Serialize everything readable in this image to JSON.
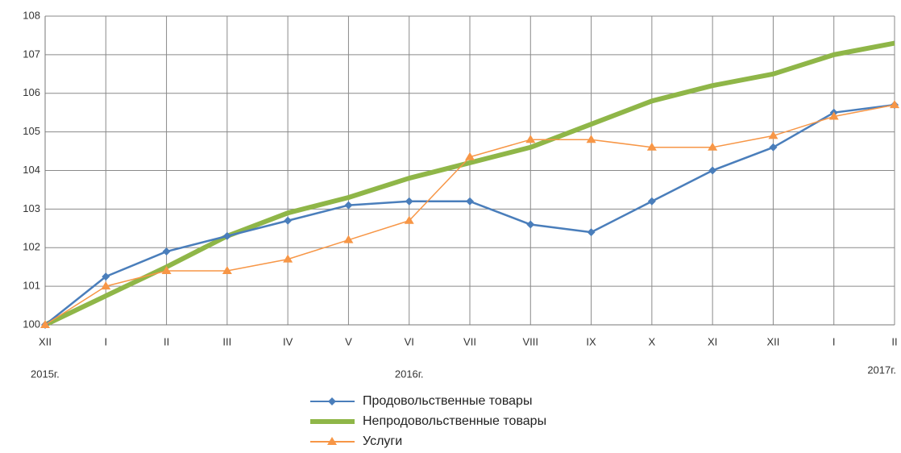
{
  "chart_data": {
    "type": "line",
    "categories": [
      "XII",
      "I",
      "II",
      "III",
      "IV",
      "V",
      "VI",
      "VII",
      "VIII",
      "IX",
      "X",
      "XI",
      "XII",
      "I",
      "II"
    ],
    "annotations": [
      "2015г.",
      "2016г.",
      "2017г."
    ],
    "series": [
      {
        "name": "Продовольственные товары",
        "color": "#4a7ebb",
        "marker": "diamond",
        "values": [
          100,
          101.25,
          101.9,
          102.3,
          102.7,
          103.1,
          103.2,
          103.2,
          102.6,
          102.4,
          103.2,
          104.0,
          104.6,
          105.5,
          105.7
        ]
      },
      {
        "name": "Непродовольственные товары",
        "color": "#8fb648",
        "marker": "none",
        "values": [
          100,
          100.75,
          101.5,
          102.3,
          102.9,
          103.3,
          103.8,
          104.2,
          104.6,
          105.2,
          105.8,
          106.2,
          106.5,
          107.0,
          107.3
        ]
      },
      {
        "name": "Услуги",
        "color": "#f79646",
        "marker": "triangle",
        "values": [
          100,
          101.0,
          101.4,
          101.4,
          101.7,
          102.2,
          102.7,
          104.35,
          104.8,
          104.8,
          104.6,
          104.6,
          104.9,
          105.4,
          105.7
        ]
      }
    ],
    "ylim": [
      100,
      108
    ],
    "yticks": [
      100,
      101,
      102,
      103,
      104,
      105,
      106,
      107,
      108
    ],
    "grid": true,
    "legend": "bottom"
  }
}
